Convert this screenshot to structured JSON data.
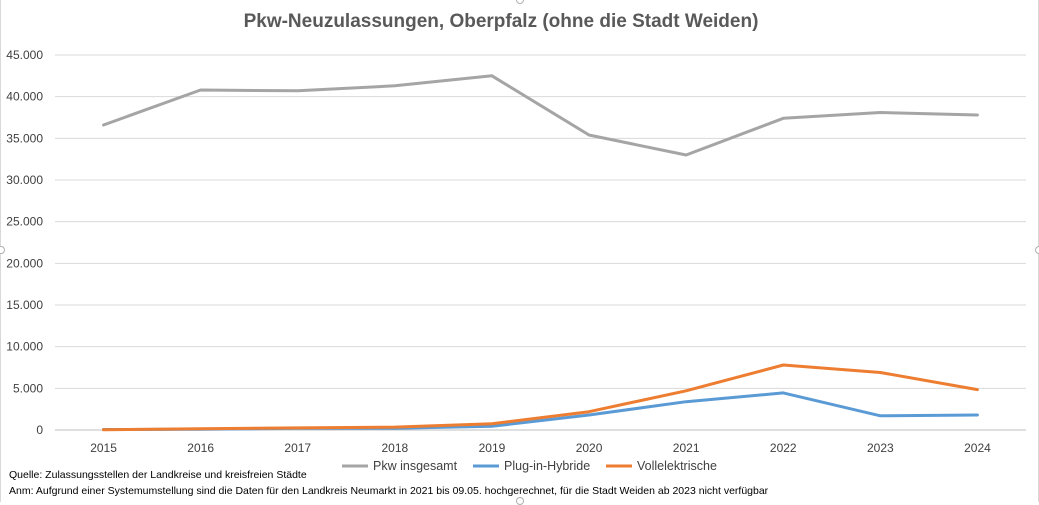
{
  "chart_data": {
    "type": "line",
    "title": "Pkw-Neuzulassungen, Oberpfalz (ohne die Stadt Weiden)",
    "xlabel": "",
    "ylabel": "",
    "categories": [
      "2015",
      "2016",
      "2017",
      "2018",
      "2019",
      "2020",
      "2021",
      "2022",
      "2023",
      "2024"
    ],
    "ylim": [
      0,
      45000
    ],
    "yticks": [
      0,
      5000,
      10000,
      15000,
      20000,
      25000,
      30000,
      35000,
      40000,
      45000
    ],
    "ytick_labels": [
      "0",
      "5.000",
      "10.000",
      "15.000",
      "20.000",
      "25.000",
      "30.000",
      "35.000",
      "40.000",
      "45.000"
    ],
    "grid": true,
    "legend_position": "bottom",
    "series": [
      {
        "name": "Pkw insgesamt",
        "color": "#a5a5a5",
        "values": [
          36600,
          40800,
          40700,
          41300,
          42500,
          35400,
          33000,
          37400,
          38100,
          37800
        ]
      },
      {
        "name": "Plug-in-Hybride",
        "color": "#5b9bd5",
        "values": [
          60,
          90,
          200,
          200,
          450,
          1800,
          3400,
          4450,
          1700,
          1800
        ]
      },
      {
        "name": "Vollelektrische",
        "color": "#ed7d31",
        "values": [
          30,
          140,
          250,
          350,
          750,
          2200,
          4700,
          7800,
          6900,
          4850
        ]
      }
    ],
    "notes": [
      "Quelle: Zulassungsstellen der Landkreise und kreisfreien Städte",
      "Anm: Aufgrund einer Systemumstellung sind die Daten für den Landkreis Neumarkt in 2021 bis 09.05. hochgerechnet, für die Stadt Weiden ab 2023 nicht verfügbar"
    ]
  }
}
